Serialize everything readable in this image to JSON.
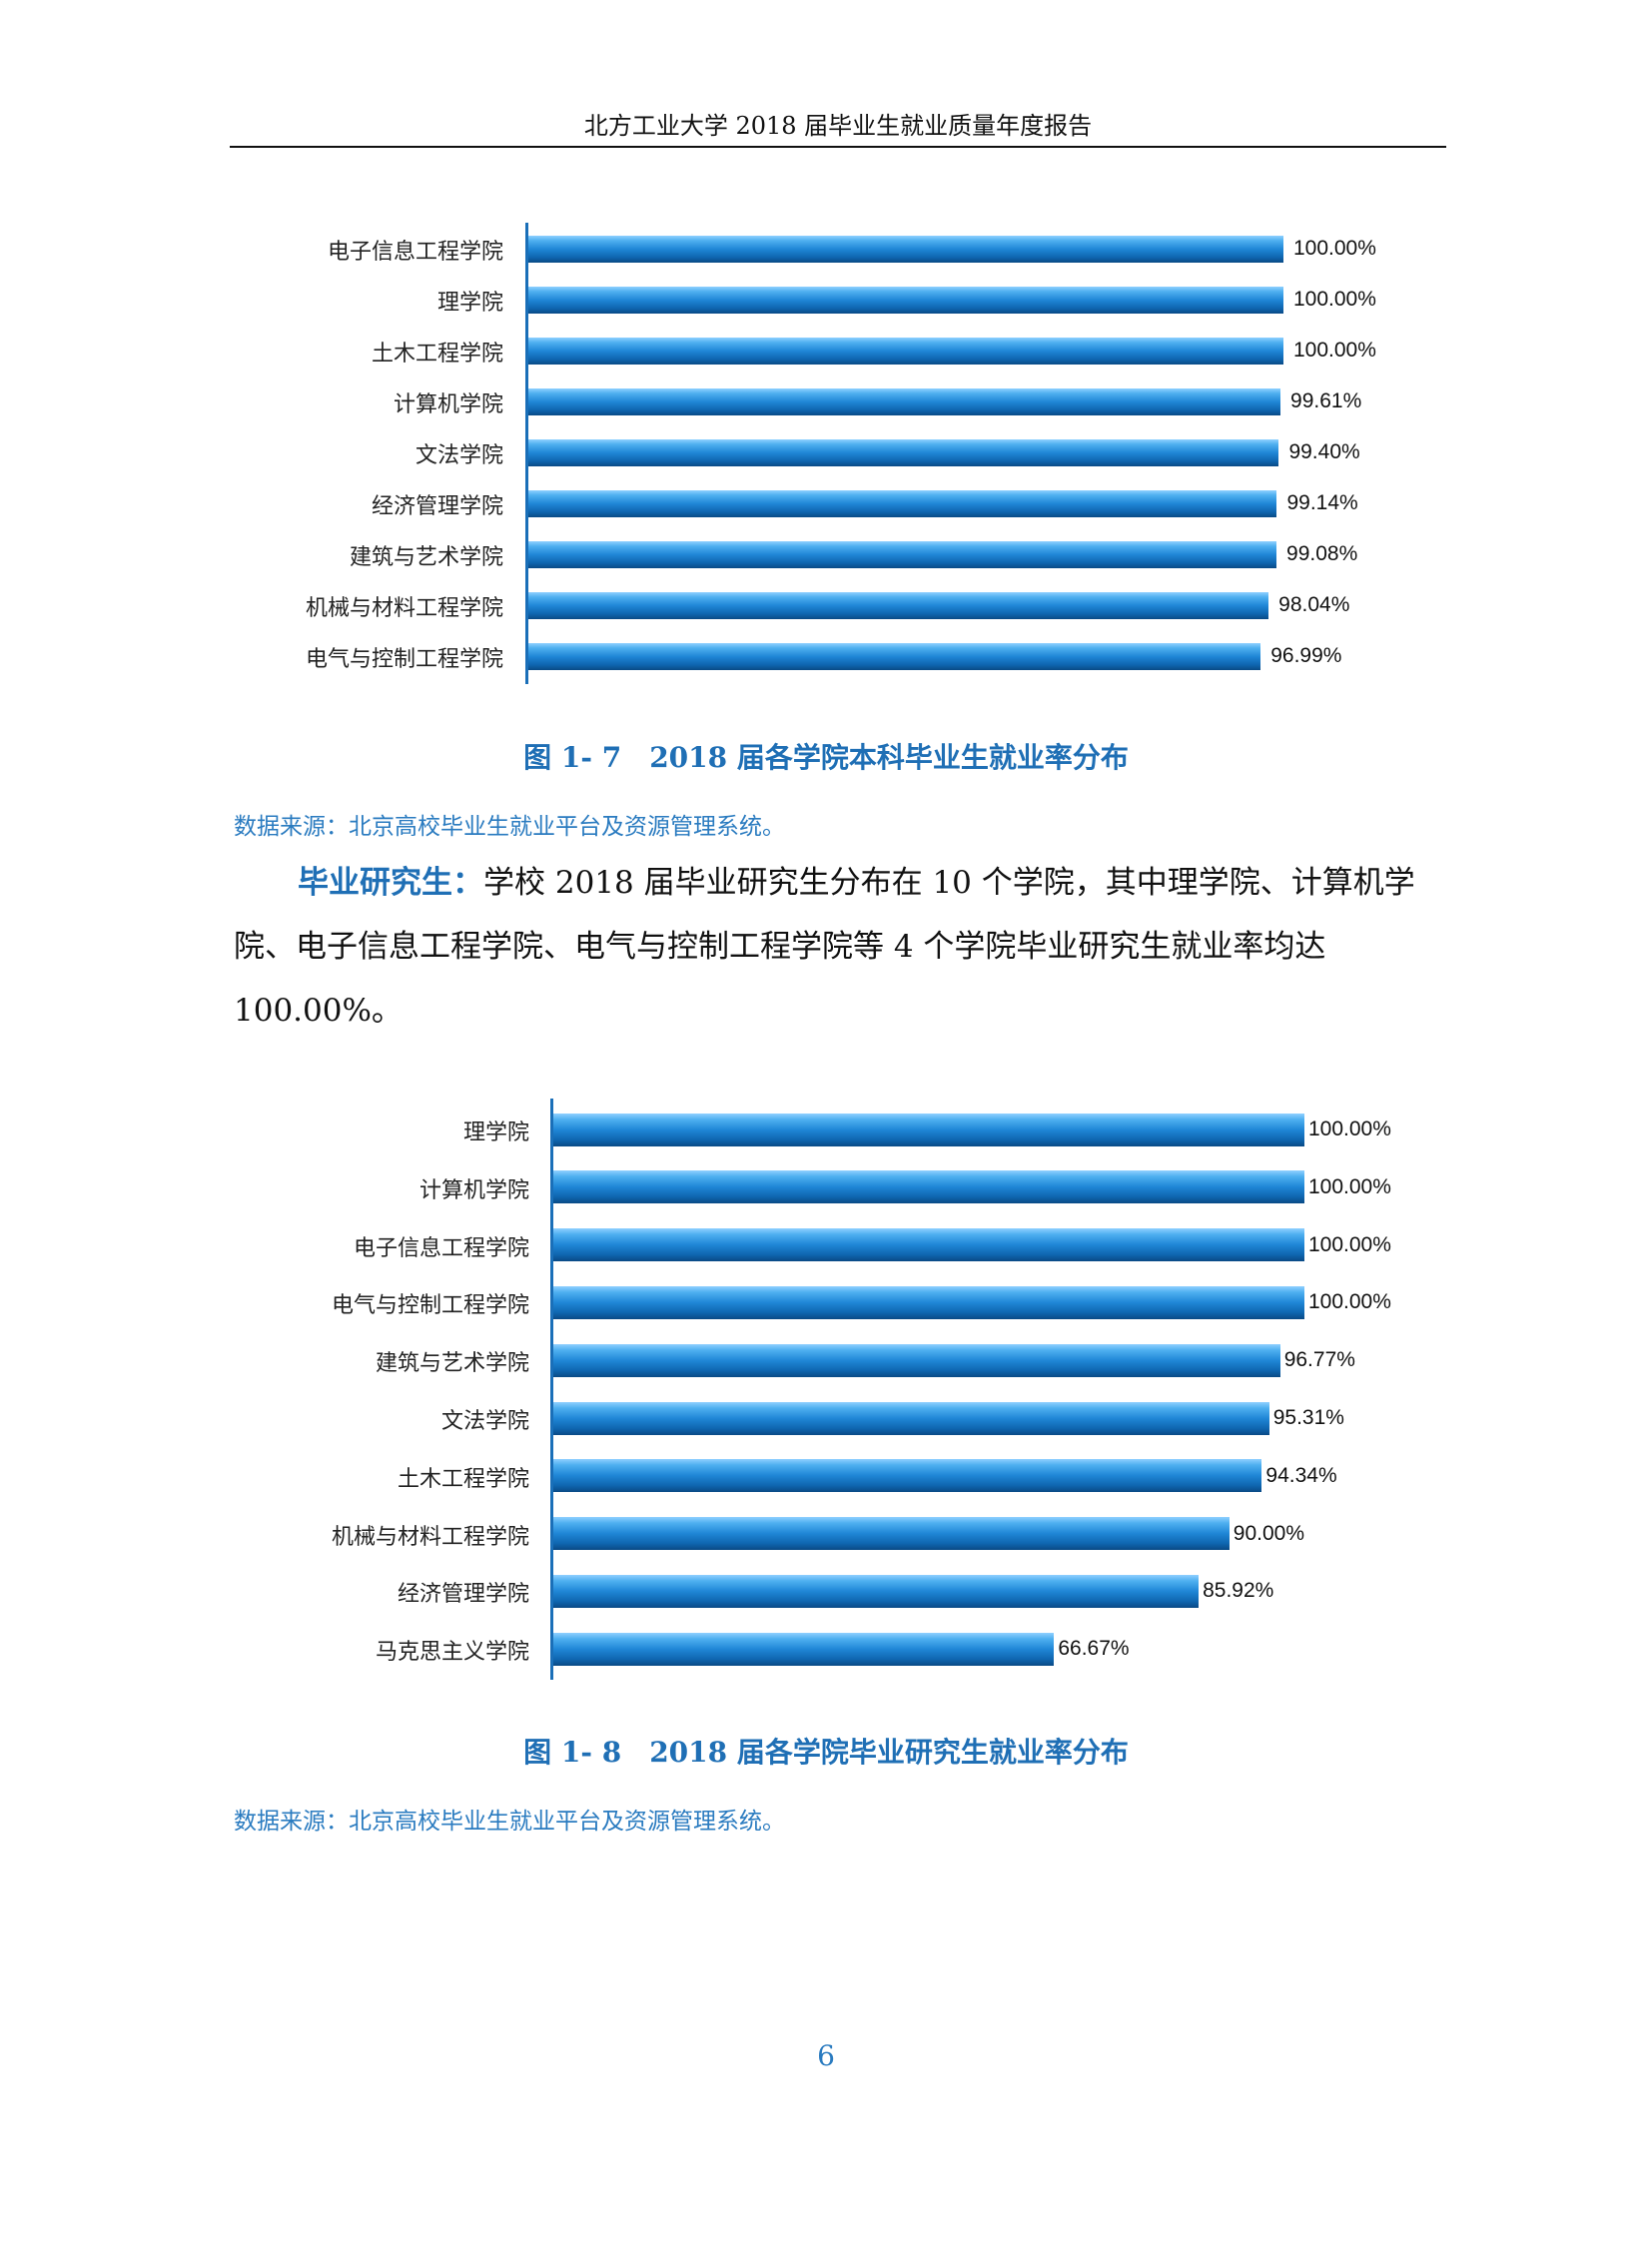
{
  "header": {
    "title": "北方工业大学 2018 届毕业生就业质量年度报告"
  },
  "chart_data": [
    {
      "type": "bar",
      "orientation": "horizontal",
      "title": "图 1- 7　2018 届各学院本科毕业生就业率分布",
      "categories": [
        "电子信息工程学院",
        "理学院",
        "土木工程学院",
        "计算机学院",
        "文法学院",
        "经济管理学院",
        "建筑与艺术学院",
        "机械与材料工程学院",
        "电气与控制工程学院"
      ],
      "values": [
        100.0,
        100.0,
        100.0,
        99.61,
        99.4,
        99.14,
        99.08,
        98.04,
        96.99
      ],
      "labels": [
        "100.00%",
        "100.00%",
        "100.00%",
        "99.61%",
        "99.40%",
        "99.14%",
        "99.08%",
        "98.04%",
        "96.99%"
      ],
      "xlim": [
        0,
        100
      ],
      "unit": "%",
      "grid": false,
      "bar_color": "#1f86d6"
    },
    {
      "type": "bar",
      "orientation": "horizontal",
      "title": "图 1- 8　2018 届各学院毕业研究生就业率分布",
      "categories": [
        "理学院",
        "计算机学院",
        "电子信息工程学院",
        "电气与控制工程学院",
        "建筑与艺术学院",
        "文法学院",
        "土木工程学院",
        "机械与材料工程学院",
        "经济管理学院",
        "马克思主义学院"
      ],
      "values": [
        100.0,
        100.0,
        100.0,
        100.0,
        96.77,
        95.31,
        94.34,
        90.0,
        85.92,
        66.67
      ],
      "labels": [
        "100.00%",
        "100.00%",
        "100.00%",
        "100.00%",
        "96.77%",
        "95.31%",
        "94.34%",
        "90.00%",
        "85.92%",
        "66.67%"
      ],
      "xlim": [
        0,
        100
      ],
      "unit": "%",
      "grid": false,
      "bar_color": "#1f86d6"
    }
  ],
  "captions": {
    "fig1": "图 1- 7　2018 届各学院本科毕业生就业率分布",
    "fig2": "图 1- 8　2018 届各学院毕业研究生就业率分布"
  },
  "source1": "数据来源：北京高校毕业生就业平台及资源管理系统。",
  "source2": "数据来源：北京高校毕业生就业平台及资源管理系统。",
  "paragraph": {
    "lead": "毕业研究生：",
    "body": "学校 2018 届毕业研究生分布在 10 个学院，其中理学院、计算机学院、电子信息工程学院、电气与控制工程学院等 4 个学院毕业研究生就业率均达 100.00%。"
  },
  "page_number": "6",
  "colors": {
    "accent": "#1f6fb5",
    "bar": "#1f86d6",
    "axis": "#1a6fb8"
  }
}
